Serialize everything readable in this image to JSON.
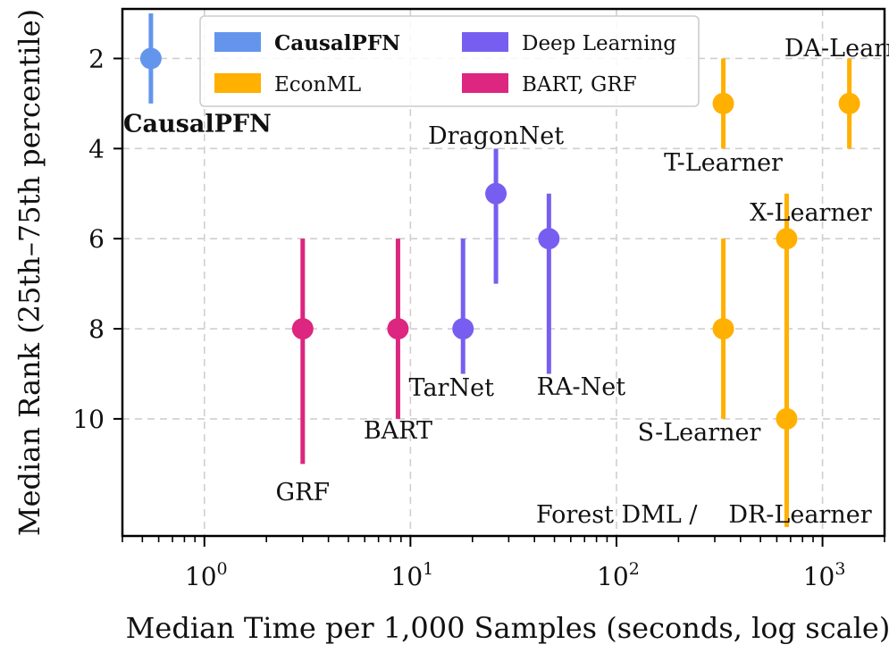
{
  "chart_data": {
    "type": "scatter",
    "xlabel": "Median Time per 1,000 Samples (seconds, log scale)",
    "ylabel": "Median Rank (25th–75th percentile)",
    "xscale": "log",
    "xlim": [
      0.4,
      2000
    ],
    "ylim": [
      0.9,
      12.6
    ],
    "y_inverted": true,
    "grid": true,
    "legend_position": "top",
    "xticks": [
      {
        "value": 1,
        "label": "10",
        "exp": "0"
      },
      {
        "value": 10,
        "label": "10",
        "exp": "1"
      },
      {
        "value": 100,
        "label": "10",
        "exp": "2"
      },
      {
        "value": 1000,
        "label": "10",
        "exp": "3"
      }
    ],
    "yticks": [
      2,
      4,
      6,
      8,
      10
    ],
    "groups": [
      {
        "name": "CausalPFN",
        "color": "#6495ED",
        "bold": true
      },
      {
        "name": "EconML",
        "color": "#FFB000",
        "bold": false
      },
      {
        "name": "Deep Learning",
        "color": "#785EF0",
        "bold": false
      },
      {
        "name": "BART, GRF",
        "color": "#DC267F",
        "bold": false
      }
    ],
    "points": [
      {
        "name": "CausalPFN",
        "group": "CausalPFN",
        "x": 0.55,
        "y": 2,
        "low": 1,
        "high": 3,
        "label": "CausalPFN",
        "bold": true
      },
      {
        "name": "GRF",
        "group": "BART, GRF",
        "x": 3.0,
        "y": 8,
        "low": 6,
        "high": 11,
        "label": "GRF"
      },
      {
        "name": "BART",
        "group": "BART, GRF",
        "x": 8.7,
        "y": 8,
        "low": 6,
        "high": 10,
        "label": "BART"
      },
      {
        "name": "TarNet",
        "group": "Deep Learning",
        "x": 18,
        "y": 8,
        "low": 6,
        "high": 9,
        "label": "TarNet"
      },
      {
        "name": "DragonNet",
        "group": "Deep Learning",
        "x": 26,
        "y": 5,
        "low": 4,
        "high": 7,
        "label": "DragonNet"
      },
      {
        "name": "RA-Net",
        "group": "Deep Learning",
        "x": 47,
        "y": 6,
        "low": 5,
        "high": 9,
        "label": "RA-Net"
      },
      {
        "name": "T-Learner",
        "group": "EconML",
        "x": 330,
        "y": 3,
        "low": 2,
        "high": 4,
        "label": "T-Learner"
      },
      {
        "name": "S-Learner",
        "group": "EconML",
        "x": 330,
        "y": 8,
        "low": 6,
        "high": 10,
        "label": "S-Learner"
      },
      {
        "name": "DA-Learner",
        "group": "EconML",
        "x": 1350,
        "y": 3,
        "low": 2,
        "high": 4,
        "label": "DA-Learner"
      },
      {
        "name": "X-Learner",
        "group": "EconML",
        "x": 670,
        "y": 6,
        "low": 5,
        "high": 12,
        "label": "X-Learner"
      },
      {
        "name": "DR-Learner",
        "group": "EconML",
        "x": 670,
        "y": 10,
        "low": 6,
        "high": 12.4,
        "label": "DR-Learner"
      }
    ],
    "annotations": [
      {
        "text": "Forest DML /",
        "note": "shares point with DR-Learner"
      }
    ]
  }
}
